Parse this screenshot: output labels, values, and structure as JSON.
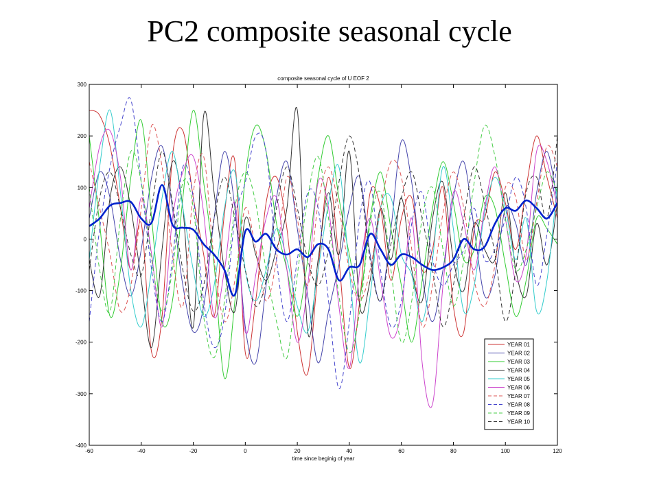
{
  "slide": {
    "title": "PC2 composite seasonal cycle"
  },
  "chart_data": {
    "type": "line",
    "title": "composite seasonal cycle of U EOF 2",
    "xlabel": "time since beginig of year",
    "ylabel": "",
    "xlim": [
      -60,
      120
    ],
    "ylim": [
      -400,
      300
    ],
    "xticks": [
      -60,
      -40,
      -20,
      0,
      20,
      40,
      60,
      80,
      100,
      120
    ],
    "yticks": [
      300,
      200,
      100,
      0,
      -100,
      -200,
      -300,
      -400
    ],
    "grid": false,
    "legend_position": "bottom-right",
    "x": [
      -60,
      -56,
      -52,
      -48,
      -44,
      -40,
      -36,
      -32,
      -28,
      -24,
      -20,
      -16,
      -12,
      -8,
      -4,
      0,
      4,
      8,
      12,
      16,
      20,
      24,
      28,
      32,
      36,
      40,
      44,
      48,
      52,
      56,
      60,
      64,
      68,
      72,
      76,
      80,
      84,
      88,
      92,
      96,
      100,
      104,
      108,
      112,
      116,
      120
    ],
    "series": [
      {
        "name": "YEAR 01",
        "color": "#cc3333",
        "dash": "solid",
        "width": 1,
        "values": [
          250,
          240,
          180,
          60,
          -60,
          30,
          -220,
          -150,
          160,
          210,
          80,
          -30,
          -150,
          50,
          150,
          -220,
          -120,
          70,
          120,
          20,
          -180,
          -260,
          -60,
          120,
          -40,
          -250,
          -120,
          90,
          60,
          -80,
          40,
          80,
          -60,
          -20,
          100,
          -130,
          -180,
          20,
          40,
          130,
          70,
          -20,
          100,
          200,
          120,
          40
        ]
      },
      {
        "name": "YEAR 02",
        "color": "#4444aa",
        "dash": "solid",
        "width": 1,
        "values": [
          40,
          130,
          80,
          -40,
          -110,
          -20,
          120,
          180,
          60,
          -90,
          -180,
          -130,
          40,
          170,
          60,
          -170,
          -240,
          -90,
          80,
          150,
          20,
          -110,
          -240,
          -140,
          -50,
          60,
          120,
          -30,
          -120,
          20,
          190,
          110,
          -70,
          -160,
          -60,
          80,
          150,
          20,
          -110,
          -70,
          60,
          30,
          -50,
          90,
          170,
          70
        ]
      },
      {
        "name": "YEAR 03",
        "color": "#33cc33",
        "dash": "solid",
        "width": 1,
        "values": [
          200,
          30,
          -150,
          -60,
          120,
          230,
          40,
          -160,
          -120,
          80,
          250,
          110,
          -50,
          -270,
          -120,
          120,
          220,
          170,
          30,
          -60,
          -150,
          -40,
          120,
          200,
          80,
          -30,
          -110,
          40,
          130,
          20,
          -90,
          -200,
          -80,
          60,
          150,
          70,
          -40,
          -20,
          80,
          60,
          -50,
          -150,
          -80,
          40,
          20,
          -10
        ]
      },
      {
        "name": "YEAR 04",
        "color": "#333333",
        "dash": "solid",
        "width": 1,
        "values": [
          -40,
          -110,
          80,
          140,
          60,
          -80,
          -210,
          -20,
          150,
          60,
          -170,
          240,
          90,
          -60,
          -140,
          40,
          -30,
          -80,
          -20,
          60,
          250,
          -180,
          -40,
          90,
          -30,
          170,
          -130,
          -80,
          60,
          -40,
          80,
          -60,
          -120,
          40,
          110,
          -40,
          -100,
          30,
          -20,
          -40,
          90,
          -60,
          -110,
          30,
          -50,
          70
        ]
      },
      {
        "name": "YEAR 05",
        "color": "#33cccc",
        "dash": "solid",
        "width": 1,
        "values": [
          -40,
          140,
          250,
          90,
          -100,
          -170,
          -60,
          80,
          170,
          60,
          -60,
          -150,
          -90,
          60,
          130,
          -60,
          -120,
          -60,
          20,
          -40,
          -130,
          -180,
          -60,
          70,
          140,
          -60,
          -240,
          -110,
          60,
          80,
          -30,
          -70,
          -160,
          -40,
          140,
          20,
          -140,
          -90,
          50,
          120,
          60,
          -40,
          40,
          -140,
          -80,
          110
        ]
      },
      {
        "name": "YEAR 06",
        "color": "#cc44cc",
        "dash": "solid",
        "width": 1,
        "values": [
          60,
          180,
          210,
          120,
          -60,
          80,
          -30,
          -170,
          40,
          130,
          160,
          50,
          -150,
          -60,
          70,
          -180,
          -70,
          40,
          80,
          -60,
          -200,
          -90,
          110,
          60,
          -130,
          -250,
          -60,
          40,
          -80,
          -190,
          -140,
          40,
          -240,
          -320,
          -90,
          90,
          30,
          -60,
          60,
          140,
          40,
          -80,
          -30,
          170,
          150,
          60
        ]
      },
      {
        "name": "YEAR 07",
        "color": "#dd5555",
        "dash": "dashed",
        "width": 1,
        "values": [
          150,
          60,
          -30,
          -140,
          -90,
          60,
          220,
          140,
          -30,
          -130,
          90,
          160,
          -40,
          -160,
          -80,
          60,
          -20,
          -120,
          -40,
          120,
          40,
          -90,
          70,
          140,
          60,
          -60,
          -120,
          -60,
          60,
          150,
          120,
          -20,
          -170,
          -90,
          50,
          130,
          60,
          -80,
          -130,
          -50,
          100,
          80,
          -40,
          70,
          180,
          140
        ]
      },
      {
        "name": "YEAR 08",
        "color": "#4444cc",
        "dash": "dashed",
        "width": 1,
        "values": [
          -160,
          20,
          140,
          220,
          270,
          110,
          -60,
          -160,
          -40,
          140,
          80,
          -120,
          -210,
          -150,
          40,
          110,
          200,
          170,
          -40,
          -160,
          -40,
          90,
          60,
          -120,
          -290,
          -160,
          40,
          110,
          -60,
          -170,
          -120,
          30,
          90,
          -40,
          -90,
          -50,
          -20,
          60,
          -40,
          -20,
          40,
          120,
          60,
          -90,
          10,
          150
        ]
      },
      {
        "name": "YEAR 09",
        "color": "#44cc44",
        "dash": "dashed",
        "width": 1,
        "values": [
          100,
          -60,
          -140,
          40,
          170,
          110,
          -40,
          -140,
          -60,
          110,
          60,
          -150,
          -230,
          -120,
          60,
          130,
          70,
          -60,
          -160,
          -230,
          -70,
          80,
          160,
          40,
          -110,
          -220,
          -140,
          30,
          90,
          -60,
          -200,
          -120,
          40,
          100,
          -20,
          -130,
          -40,
          110,
          220,
          160,
          40,
          -60,
          -20,
          60,
          130,
          90
        ]
      },
      {
        "name": "YEAR 10",
        "color": "#333333",
        "dash": "dashed",
        "width": 1,
        "values": [
          -60,
          80,
          130,
          60,
          -30,
          -70,
          60,
          170,
          70,
          -60,
          -140,
          -90,
          40,
          120,
          40,
          -60,
          -130,
          -80,
          60,
          140,
          60,
          -40,
          -90,
          -20,
          110,
          200,
          120,
          -40,
          -120,
          -10,
          80,
          130,
          40,
          -60,
          -170,
          -90,
          40,
          140,
          70,
          -30,
          -160,
          -60,
          90,
          120,
          40,
          200
        ]
      },
      {
        "name": "",
        "color": "#0022cc",
        "dash": "solid",
        "width": 2.6,
        "values": [
          25,
          40,
          65,
          70,
          72,
          40,
          32,
          105,
          28,
          22,
          18,
          -10,
          -30,
          -60,
          -108,
          15,
          -5,
          10,
          -20,
          -30,
          -20,
          -35,
          -10,
          -20,
          -80,
          -55,
          -50,
          10,
          -20,
          -50,
          -30,
          -35,
          -50,
          -60,
          -55,
          -40,
          0,
          -20,
          -15,
          30,
          60,
          55,
          75,
          60,
          40,
          70
        ]
      }
    ]
  }
}
